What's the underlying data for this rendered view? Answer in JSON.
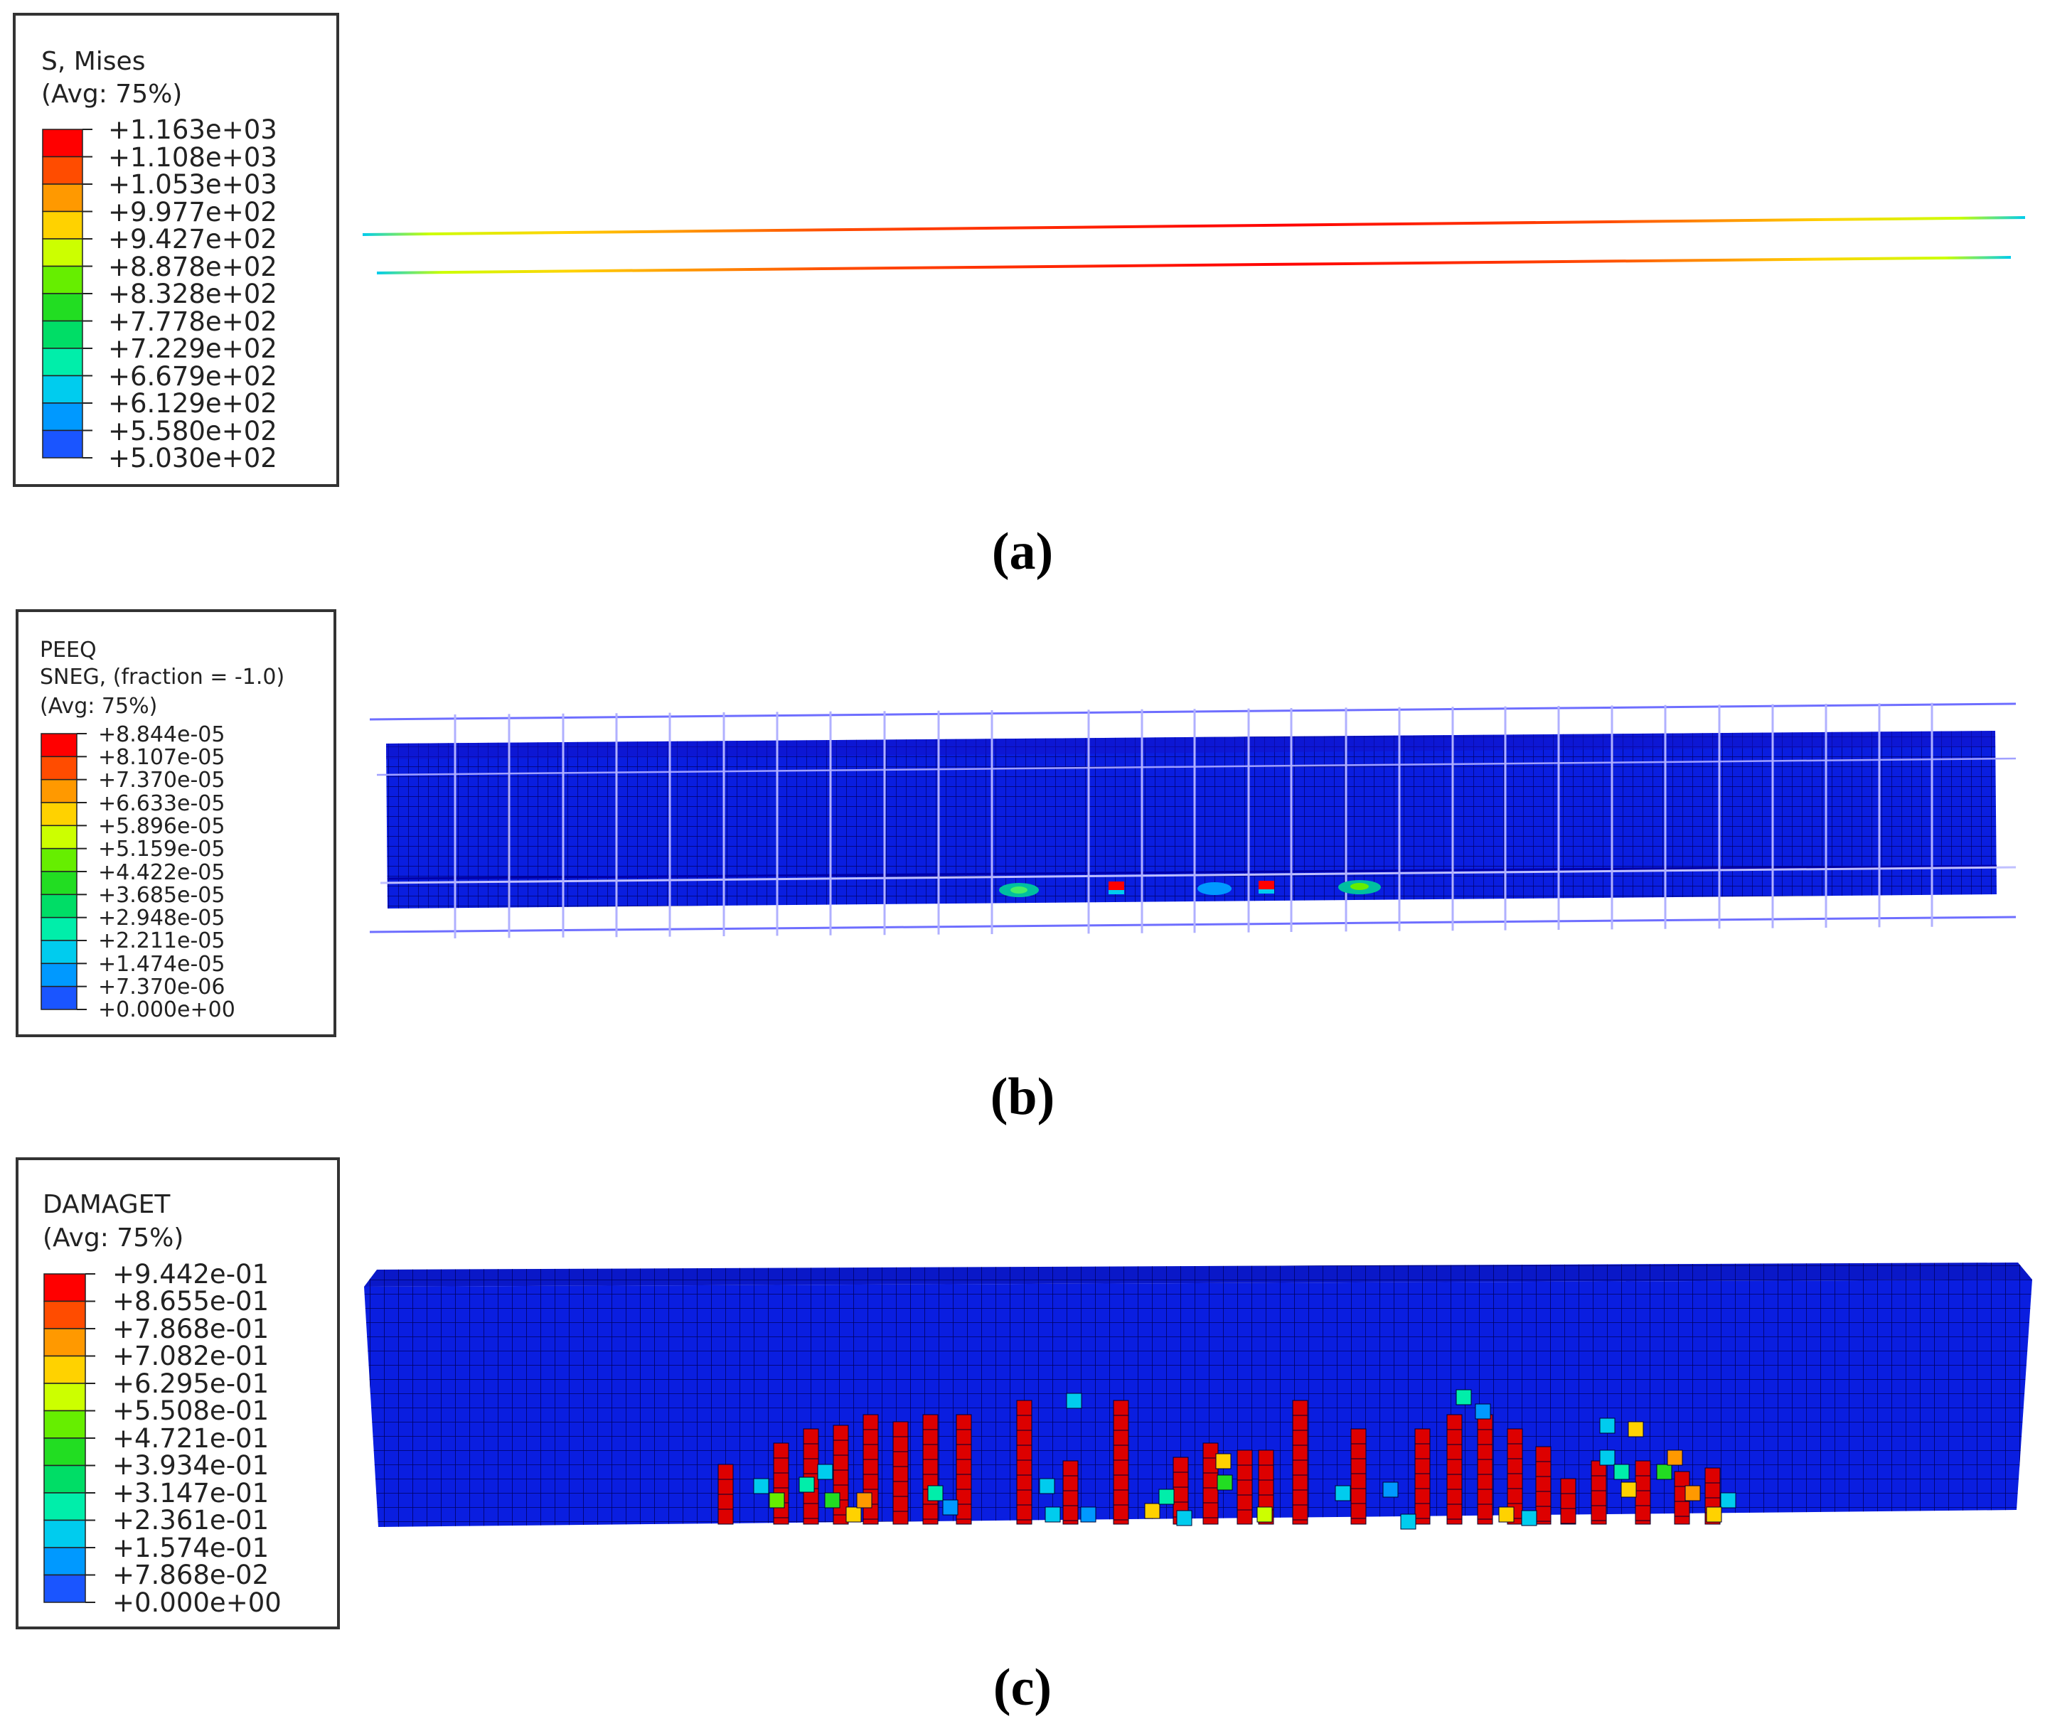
{
  "panels": [
    {
      "id": "a",
      "caption": "(a)",
      "legend": {
        "title_lines": [
          "S, Mises",
          "(Avg: 75%)"
        ],
        "values": [
          "+1.163e+03",
          "+1.108e+03",
          "+1.053e+03",
          "+9.977e+02",
          "+9.427e+02",
          "+8.878e+02",
          "+8.328e+02",
          "+7.778e+02",
          "+7.229e+02",
          "+6.679e+02",
          "+6.129e+02",
          "+5.580e+02",
          "+5.030e+02"
        ]
      }
    },
    {
      "id": "b",
      "caption": "(b)",
      "legend": {
        "title_lines": [
          "PEEQ",
          "SNEG, (fraction = -1.0)",
          "(Avg: 75%)"
        ],
        "values": [
          "+8.844e-05",
          "+8.107e-05",
          "+7.370e-05",
          "+6.633e-05",
          "+5.896e-05",
          "+5.159e-05",
          "+4.422e-05",
          "+3.685e-05",
          "+2.948e-05",
          "+2.211e-05",
          "+1.474e-05",
          "+7.370e-06",
          "+0.000e+00"
        ]
      }
    },
    {
      "id": "c",
      "caption": "(c)",
      "legend": {
        "title_lines": [
          "DAMAGET",
          "(Avg: 75%)"
        ],
        "values": [
          "+9.442e-01",
          "+8.655e-01",
          "+7.868e-01",
          "+7.082e-01",
          "+6.295e-01",
          "+5.508e-01",
          "+4.721e-01",
          "+3.934e-01",
          "+3.147e-01",
          "+2.361e-01",
          "+1.574e-01",
          "+7.868e-02",
          "+0.000e+00"
        ]
      }
    }
  ],
  "colormap": [
    "#ff0000",
    "#ff4c00",
    "#ff9900",
    "#ffd200",
    "#ccff00",
    "#66ee00",
    "#22dd22",
    "#00dd66",
    "#00eeaa",
    "#00ccee",
    "#0099ff",
    "#1a55ff",
    "#0000ff"
  ]
}
